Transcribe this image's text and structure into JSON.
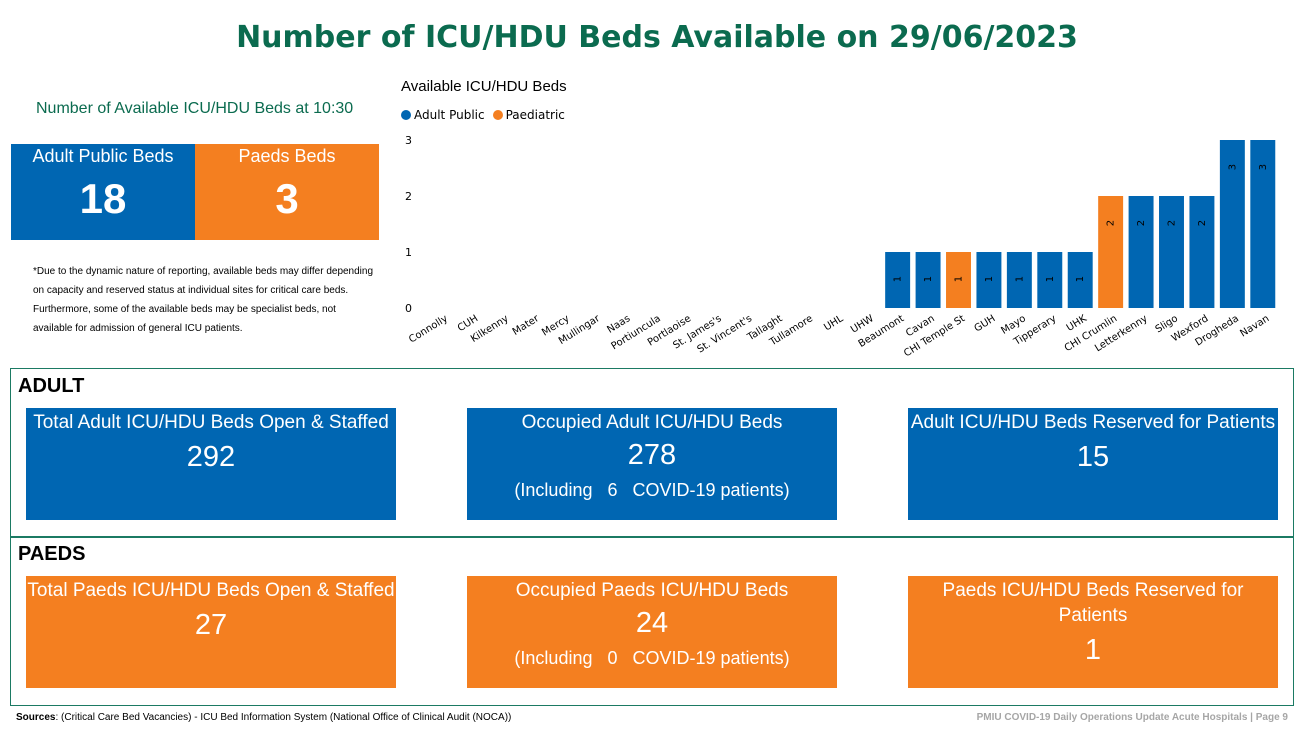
{
  "title": "Number of ICU/HDU Beds Available on 29/06/2023",
  "subtitle": "Number of Available ICU/HDU Beds at 10:30",
  "kpis": [
    {
      "label": "Adult Public Beds",
      "value": "18",
      "color": "#0066b2"
    },
    {
      "label": "Paeds Beds",
      "value": "3",
      "color": "#f47f20"
    }
  ],
  "note": "*Due to the dynamic nature of reporting, available beds may differ depending on capacity and reserved status at individual sites for critical care beds. Furthermore, some of the available beds may be specialist beds, not available for admission of general ICU patients.",
  "chart_data": {
    "type": "bar",
    "title": "Available ICU/HDU Beds",
    "categories": [
      "Connolly",
      "CUH",
      "Kilkenny",
      "Mater",
      "Mercy",
      "Mullingar",
      "Naas",
      "Portiuncula",
      "Portlaoise",
      "St. James's",
      "St. Vincent's",
      "Tallaght",
      "Tullamore",
      "UHL",
      "UHW",
      "Beaumont",
      "Cavan",
      "CHI Temple St",
      "GUH",
      "Mayo",
      "Tipperary",
      "UHK",
      "CHI Crumlin",
      "Letterkenny",
      "Sligo",
      "Wexford",
      "Drogheda",
      "Navan"
    ],
    "values": [
      0,
      0,
      0,
      0,
      0,
      0,
      0,
      0,
      0,
      0,
      0,
      0,
      0,
      0,
      0,
      1,
      1,
      1,
      1,
      1,
      1,
      1,
      2,
      2,
      2,
      2,
      3,
      3
    ],
    "series_of_bar": [
      "Adult Public",
      "Adult Public",
      "Adult Public",
      "Adult Public",
      "Adult Public",
      "Adult Public",
      "Adult Public",
      "Adult Public",
      "Adult Public",
      "Adult Public",
      "Adult Public",
      "Adult Public",
      "Adult Public",
      "Adult Public",
      "Adult Public",
      "Adult Public",
      "Adult Public",
      "Paediatric",
      "Adult Public",
      "Adult Public",
      "Adult Public",
      "Adult Public",
      "Paediatric",
      "Adult Public",
      "Adult Public",
      "Adult Public",
      "Adult Public",
      "Adult Public"
    ],
    "legend": [
      {
        "name": "Adult Public",
        "color": "#0066b2"
      },
      {
        "name": "Paediatric",
        "color": "#f47f20"
      }
    ],
    "yticks": [
      "0",
      "1",
      "2",
      "3"
    ],
    "ylim": [
      0,
      3
    ],
    "legend_position": "top-left"
  },
  "adult": {
    "heading": "ADULT",
    "open_title": "Total Adult ICU/HDU Beds Open & Staffed",
    "open_value": "292",
    "occupied_title": "Occupied Adult ICU/HDU Beds",
    "occupied_value": "278",
    "inc_prefix": "(Including",
    "inc_value": "6",
    "inc_suffix": "COVID-19 patients)",
    "reserved_title": "Adult ICU/HDU Beds Reserved for Patients",
    "reserved_value": "15"
  },
  "paeds": {
    "heading": "PAEDS",
    "open_title": "Total Paeds ICU/HDU Beds Open & Staffed",
    "open_value": "27",
    "occupied_title": "Occupied Paeds ICU/HDU Beds",
    "occupied_value": "24",
    "inc_prefix": "(Including",
    "inc_value": "0",
    "inc_suffix": "COVID-19 patients)",
    "reserved_title": "Paeds ICU/HDU Beds Reserved for Patients",
    "reserved_value": "1"
  },
  "sources_label": "Sources",
  "sources_text": ": (Critical Care Bed Vacancies) - ICU Bed Information System (National Office of Clinical Audit (NOCA))",
  "footer": "PMIU COVID-19 Daily Operations Update Acute Hospitals |  Page 9"
}
